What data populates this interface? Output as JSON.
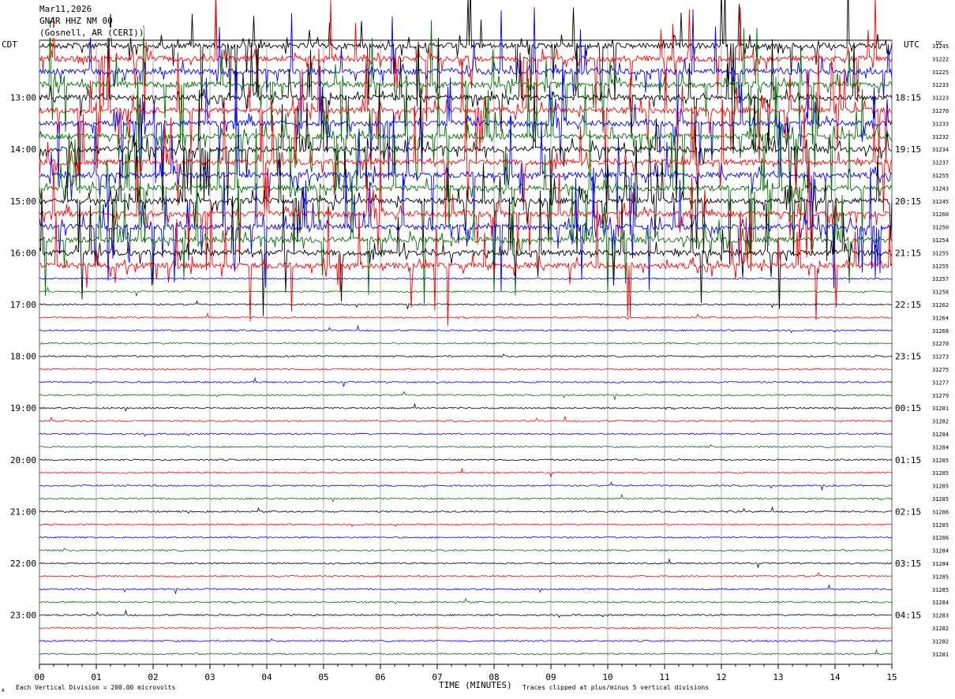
{
  "header": {
    "date": "Mar11,2026",
    "station": "GNAR HHZ NM 00",
    "location": "(Gosnell, AR (CERI))"
  },
  "left_tz": "CDT",
  "right_tz": "UTC",
  "dc_label": "DC",
  "footer": {
    "scale": "Each Vertical Division =  200.00 microvolts",
    "clip": "Traces clipped at plus/minus 5 vertical divisions",
    "mark": "A"
  },
  "chart_data": {
    "type": "line",
    "title": "",
    "xlabel": "TIME (MINUTES)",
    "x_ticks": [
      "00",
      "01",
      "02",
      "03",
      "04",
      "05",
      "06",
      "07",
      "08",
      "09",
      "10",
      "11",
      "12",
      "13",
      "14",
      "15"
    ],
    "xlim": [
      0,
      15
    ],
    "left_hour_labels": [
      "13:00",
      "14:00",
      "15:00",
      "16:00",
      "17:00",
      "18:00",
      "19:00",
      "20:00",
      "21:00",
      "22:00",
      "23:00"
    ],
    "right_hour_labels": [
      "18:15",
      "19:15",
      "20:15",
      "21:15",
      "22:15",
      "23:15",
      "00:15",
      "01:15",
      "02:15",
      "03:15",
      "04:15"
    ],
    "trace_colors": [
      "#000000",
      "#ff0000",
      "#0000ff",
      "#007000"
    ],
    "dc_offsets": [
      "31245",
      "31222",
      "31225",
      "31233",
      "31223",
      "31270",
      "31233",
      "31232",
      "31234",
      "31237",
      "31255",
      "31243",
      "31245",
      "31260",
      "31250",
      "31254",
      "31255",
      "31255",
      "31257",
      "31258",
      "31262",
      "31264",
      "31268",
      "31270",
      "31273",
      "31275",
      "31277",
      "31279",
      "31281",
      "31282",
      "31284",
      "31284",
      "31285",
      "31285",
      "31285",
      "31285",
      "31286",
      "31285",
      "31286",
      "31284",
      "31284",
      "31285",
      "31285",
      "31284",
      "31283",
      "31282",
      "31282",
      "31281"
    ],
    "active_traces": 18,
    "clip_divisions": 5
  }
}
